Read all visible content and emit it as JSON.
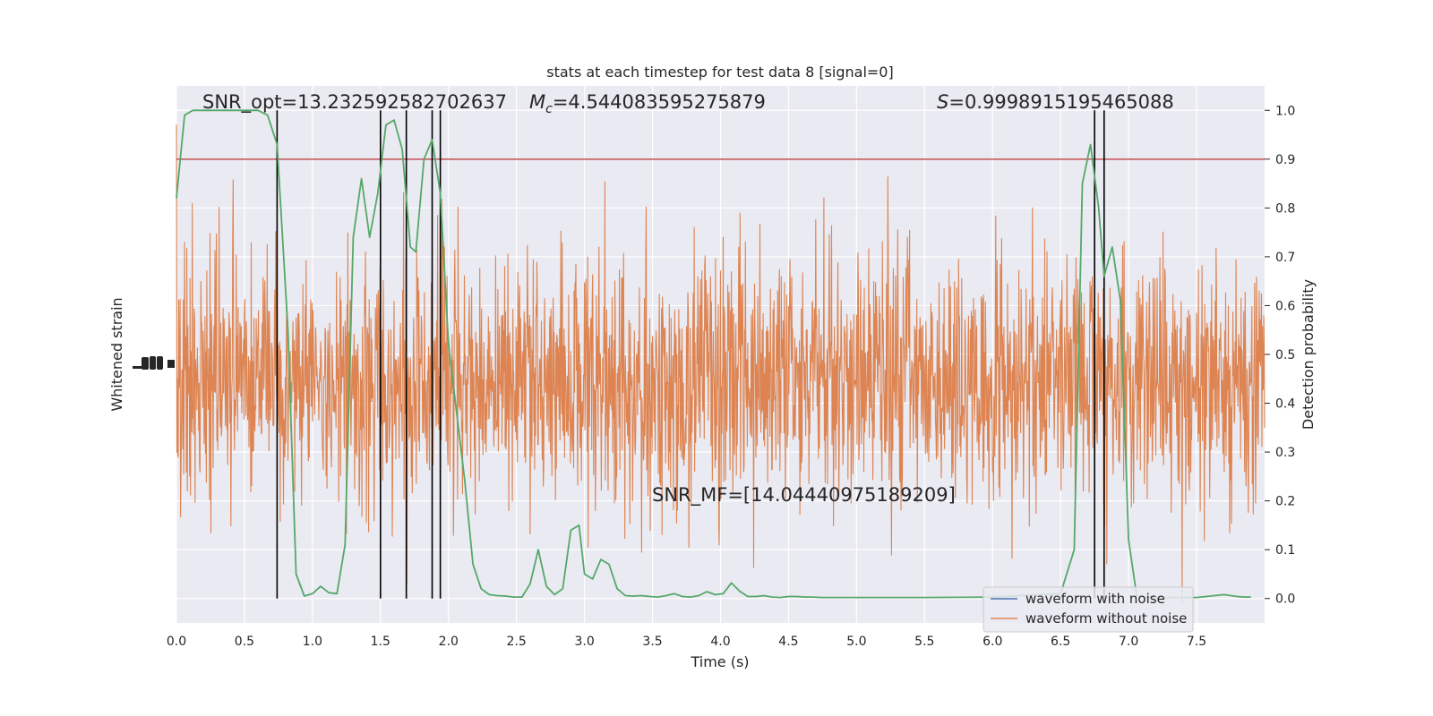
{
  "chart_data": {
    "type": "line",
    "title": "stats at each timestep for test data 8 [signal=0]",
    "xlabel": "Time (s)",
    "ylabel_left": "Whitened strain",
    "ylabel_right": "Detection probability",
    "xlim": [
      0.0,
      8.0
    ],
    "ylim_right": [
      -0.05,
      1.05
    ],
    "x_ticks": [
      "0.0",
      "0.5",
      "1.0",
      "1.5",
      "2.0",
      "2.5",
      "3.0",
      "3.5",
      "4.0",
      "4.5",
      "5.0",
      "5.5",
      "6.0",
      "6.5",
      "7.0",
      "7.5"
    ],
    "y_ticks_right": [
      "0.0",
      "0.1",
      "0.2",
      "0.3",
      "0.4",
      "0.5",
      "0.6",
      "0.7",
      "0.8",
      "0.9",
      "1.0"
    ],
    "grid": true,
    "threshold": 0.9,
    "vertical_markers": [
      0.74,
      1.5,
      1.69,
      1.88,
      1.94,
      6.75,
      6.82
    ],
    "annotations": {
      "snr_opt": "SNR_opt=13.232592582702637",
      "mc_symbol": "M",
      "mc_sub": "c",
      "mc_value": "=4.544083595275879",
      "s_symbol": "S",
      "s_value": "=0.9998915195465088",
      "snr_mf": "SNR_MF=[14.04440975189209]"
    },
    "legend": {
      "placement": "lower-right",
      "entries": [
        "waveform with noise",
        "waveform without noise"
      ]
    },
    "series": [
      {
        "kind": "detection-probability",
        "color": "#55a868",
        "x": [
          0.0,
          0.06,
          0.12,
          0.2,
          0.3,
          0.4,
          0.5,
          0.6,
          0.67,
          0.74,
          0.82,
          0.88,
          0.94,
          1.0,
          1.06,
          1.12,
          1.18,
          1.24,
          1.3,
          1.36,
          1.42,
          1.48,
          1.54,
          1.6,
          1.66,
          1.72,
          1.76,
          1.82,
          1.88,
          1.94,
          2.0,
          2.06,
          2.12,
          2.18,
          2.24,
          2.3,
          2.36,
          2.42,
          2.48,
          2.54,
          2.6,
          2.66,
          2.72,
          2.78,
          2.84,
          2.9,
          2.96,
          3.0,
          3.06,
          3.12,
          3.18,
          3.24,
          3.3,
          3.36,
          3.42,
          3.48,
          3.54,
          3.6,
          3.66,
          3.72,
          3.78,
          3.84,
          3.9,
          3.96,
          4.02,
          4.08,
          4.14,
          4.2,
          4.26,
          4.32,
          4.38,
          4.44,
          4.5,
          4.56,
          4.62,
          4.68,
          4.74,
          4.8,
          4.9,
          5.0,
          5.2,
          5.5,
          6.0,
          6.5,
          6.6,
          6.66,
          6.72,
          6.78,
          6.82,
          6.88,
          6.94,
          7.0,
          7.06,
          7.12,
          7.18,
          7.24,
          7.3,
          7.5,
          7.7,
          7.8,
          7.85,
          7.9
        ],
        "y": [
          0.82,
          0.99,
          1.0,
          1.0,
          1.0,
          1.0,
          1.0,
          1.0,
          0.99,
          0.93,
          0.55,
          0.05,
          0.005,
          0.01,
          0.025,
          0.012,
          0.01,
          0.11,
          0.74,
          0.86,
          0.74,
          0.83,
          0.97,
          0.98,
          0.92,
          0.72,
          0.71,
          0.9,
          0.94,
          0.83,
          0.52,
          0.38,
          0.24,
          0.07,
          0.02,
          0.008,
          0.006,
          0.005,
          0.003,
          0.003,
          0.03,
          0.1,
          0.025,
          0.008,
          0.02,
          0.14,
          0.15,
          0.05,
          0.04,
          0.08,
          0.07,
          0.02,
          0.006,
          0.005,
          0.006,
          0.004,
          0.003,
          0.006,
          0.01,
          0.004,
          0.003,
          0.006,
          0.014,
          0.008,
          0.01,
          0.032,
          0.015,
          0.004,
          0.004,
          0.006,
          0.003,
          0.002,
          0.004,
          0.004,
          0.003,
          0.003,
          0.002,
          0.002,
          0.002,
          0.002,
          0.002,
          0.002,
          0.003,
          0.01,
          0.1,
          0.85,
          0.93,
          0.8,
          0.66,
          0.72,
          0.61,
          0.12,
          0.006,
          0.003,
          0.002,
          0.002,
          0.002,
          0.002,
          0.008,
          0.004,
          0.003,
          0.003
        ]
      }
    ],
    "colors": {
      "waveform_with_noise": "#4c72b0",
      "waveform_without_noise": "#dd8452",
      "detection_probability": "#55a868",
      "threshold": "#c44e52",
      "markers": "#000000",
      "axes_background": "#eaeaf2"
    }
  }
}
